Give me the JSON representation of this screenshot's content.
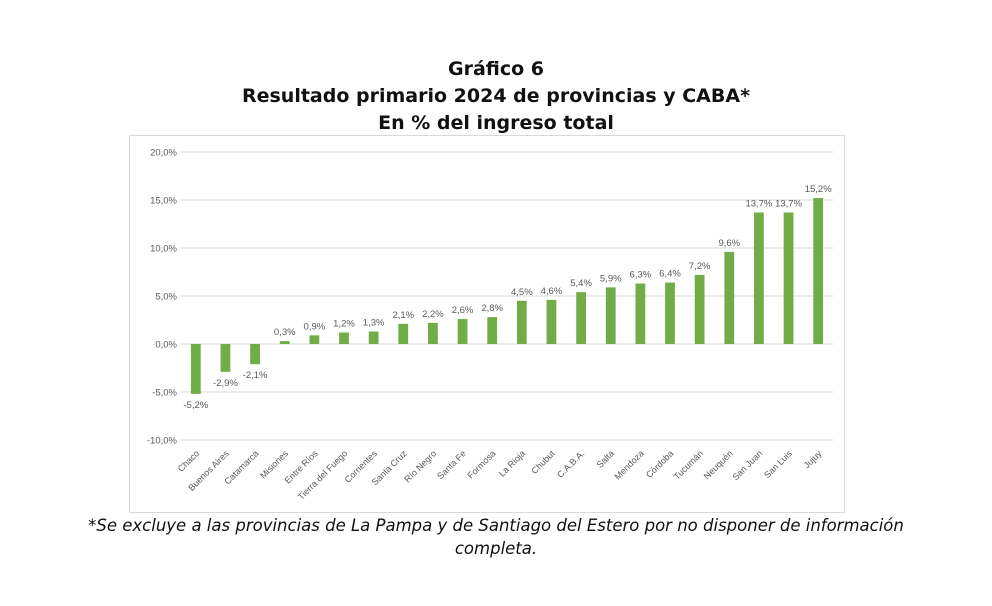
{
  "title_lines": [
    "Gráfico 6",
    "Resultado primario 2024 de provincias y CABA*",
    "En % del ingreso total"
  ],
  "footnote": "*Se excluye a las provincias de La Pampa y de Santiago del Estero por no disponer de información completa.",
  "colors": {
    "bar": "#70ad47",
    "grid": "#d9d9d9",
    "text": "#595959"
  },
  "chart_data": {
    "type": "bar",
    "title": "Resultado primario 2024 de provincias y CABA*",
    "categories": [
      "Chaco",
      "Buenos Aires",
      "Catamarca",
      "Misiones",
      "Entre Ríos",
      "Tierra del Fuego",
      "Corrientes",
      "Santa Cruz",
      "Río Negro",
      "Santa Fe",
      "Formosa",
      "La Rioja",
      "Chubut",
      "C.A.B.A.",
      "Salta",
      "Mendoza",
      "Córdoba",
      "Tucumán",
      "Neuquén",
      "San Juan",
      "San Luis",
      "Jujuy"
    ],
    "values": [
      -5.2,
      -2.9,
      -2.1,
      0.3,
      0.9,
      1.2,
      1.3,
      2.1,
      2.2,
      2.6,
      2.8,
      4.5,
      4.6,
      5.4,
      5.9,
      6.3,
      6.4,
      7.2,
      9.6,
      13.7,
      13.7,
      15.2
    ],
    "data_labels": [
      "-5,2%",
      "-2,9%",
      "-2,1%",
      "0,3%",
      "0,9%",
      "1,2%",
      "1,3%",
      "2,1%",
      "2,2%",
      "2,6%",
      "2,8%",
      "4,5%",
      "4,6%",
      "5,4%",
      "5,9%",
      "6,3%",
      "6,4%",
      "7,2%",
      "9,6%",
      "13,7%",
      "13,7%",
      "15,2%"
    ],
    "yticks": [
      20,
      15,
      10,
      5,
      0,
      -5,
      -10
    ],
    "ytick_labels": [
      "20,0%",
      "15,0%",
      "10,0%",
      "5,0%",
      "0,0%",
      "-5,0%",
      "-10,0%"
    ],
    "ylim": [
      -10,
      20
    ],
    "grid": true,
    "xlabel": "",
    "ylabel": ""
  }
}
